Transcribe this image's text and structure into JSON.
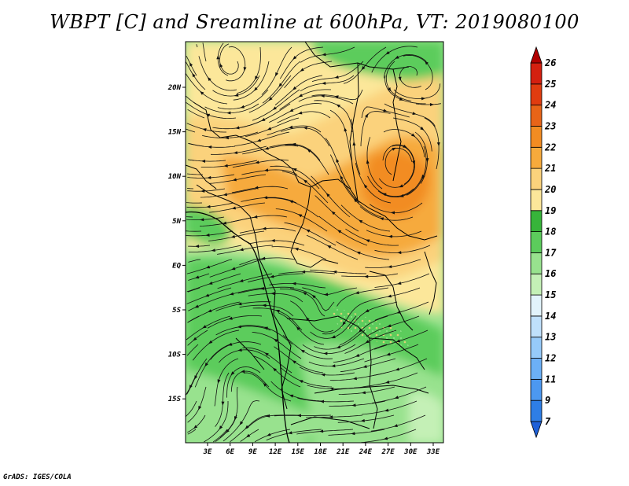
{
  "title": "WBPT [C] and Sreamline at 600hPa, VT: 2019080100",
  "credit": "GrADS: IGES/COLA",
  "map": {
    "lon_labels": [
      "3E",
      "6E",
      "9E",
      "12E",
      "15E",
      "18E",
      "21E",
      "24E",
      "27E",
      "30E",
      "33E"
    ],
    "lat_labels": [
      "20N",
      "15N",
      "10N",
      "5N",
      "EQ",
      "5S",
      "10S",
      "15S"
    ]
  },
  "colorbar": {
    "levels": [
      "7",
      "9",
      "11",
      "12",
      "13",
      "14",
      "15",
      "16",
      "17",
      "18",
      "19",
      "20",
      "21",
      "22",
      "23",
      "24",
      "25",
      "26"
    ],
    "colors": [
      "#1e60d8",
      "#2e7ee6",
      "#4c98f0",
      "#6cb0f6",
      "#96caf9",
      "#bfe0fb",
      "#e2f3fb",
      "#c4f0b6",
      "#98e28e",
      "#5ccc5c",
      "#37b43a",
      "#fce79a",
      "#fbd27c",
      "#f6aa3c",
      "#f28c22",
      "#e86418",
      "#e03c10",
      "#d42010",
      "#b00000"
    ]
  }
}
